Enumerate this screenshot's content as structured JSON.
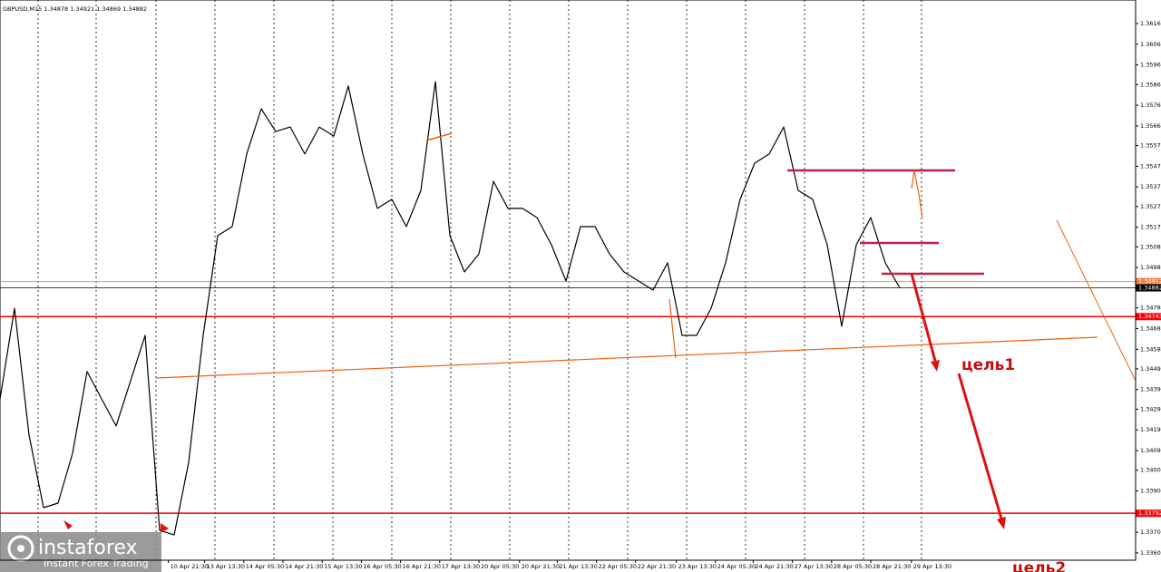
{
  "chart_data": {
    "type": "line",
    "title": "GBPUSD,M15 1.34878 1.34921 1.34869 1.34882",
    "color": "#000000",
    "values": [
      1.34345,
      1.34783,
      1.3417,
      1.33819,
      1.33841,
      1.34082,
      1.34477,
      1.34345,
      1.34214,
      1.34433,
      1.34652,
      1.33709,
      1.33687,
      1.34038,
      1.34652,
      1.35134,
      1.35178,
      1.35529,
      1.35748,
      1.35638,
      1.3566,
      1.35529,
      1.3566,
      1.35616,
      1.35858,
      1.35529,
      1.35266,
      1.3531,
      1.35178,
      1.35353,
      1.35879,
      1.35134,
      1.34959,
      1.35046,
      1.35397,
      1.35266,
      1.35266,
      1.35222,
      1.3509,
      1.34915,
      1.35178,
      1.35178,
      1.35046,
      1.34959,
      1.34915,
      1.34871,
      1.35003,
      1.34652,
      1.34652,
      1.34783,
      1.35003,
      1.3531,
      1.35485,
      1.35529,
      1.3566,
      1.35353,
      1.3531,
      1.3509,
      1.34696,
      1.3509,
      1.35222,
      1.35003,
      1.34882
    ],
    "xlim": [
      0,
      78.25
    ],
    "ylim": [
      1.33591,
      1.36274
    ],
    "xticks": [
      {
        "value": 11.6,
        "label": "10 Apr 21:30"
      },
      {
        "value": 14.1,
        "label": "13 Apr 13:30"
      },
      {
        "value": 16.8,
        "label": "14 Apr 05:30"
      },
      {
        "value": 19.5,
        "label": "14 Apr 21:30"
      },
      {
        "value": 22.2,
        "label": "15 Apr 13:30"
      },
      {
        "value": 24.9,
        "label": "16 Apr 05:30"
      },
      {
        "value": 27.6,
        "label": "16 Apr 21:30"
      },
      {
        "value": 30.3,
        "label": "17 Apr 13:30"
      },
      {
        "value": 33,
        "label": "20 Apr 05:30"
      },
      {
        "value": 35.8,
        "label": "20 Apr 21:30"
      },
      {
        "value": 38.4,
        "label": "21 Apr 13:30"
      },
      {
        "value": 41.1,
        "label": "22 Apr 05:30"
      },
      {
        "value": 43.8,
        "label": "22 Apr 21:30"
      },
      {
        "value": 46.6,
        "label": "23 Apr 13:30"
      },
      {
        "value": 49.3,
        "label": "24 Apr 05:30"
      },
      {
        "value": 51.9,
        "label": "24 Apr 21:30"
      },
      {
        "value": 54.6,
        "label": "27 Apr 13:30"
      },
      {
        "value": 57.3,
        "label": "28 Apr 05:30"
      },
      {
        "value": 60,
        "label": "28 Apr 21:30"
      },
      {
        "value": 62.8,
        "label": "29 Apr 13:30"
      }
    ],
    "yticks": [
      {
        "value": 1.3616,
        "label": "1.36160"
      },
      {
        "value": 1.3606,
        "label": "1.36060"
      },
      {
        "value": 1.3596,
        "label": "1.35960"
      },
      1.35865,
      1.35765,
      1.35665,
      {
        "value": 1.3557,
        "label": "1.35570"
      },
      {
        "value": 1.3547,
        "label": "1.35470"
      },
      {
        "value": 1.3537,
        "label": "1.35370"
      },
      1.35275,
      1.35175,
      {
        "value": 1.3508,
        "label": "1.35080"
      },
      {
        "value": 1.3498,
        "label": "1.34980"
      },
      1.34785,
      1.34685,
      1.34585,
      {
        "value": 1.3449,
        "label": "1.34490"
      },
      {
        "value": 1.3439,
        "label": "1.34390"
      },
      1.34295,
      1.34195,
      1.34095,
      {
        "value": 1.34,
        "label": "1.34000"
      },
      {
        "value": 1.339,
        "label": "1.33900"
      },
      {
        "value": 1.337,
        "label": "1.33700"
      },
      {
        "value": 1.336,
        "label": "1.33600"
      }
    ],
    "levels": [
      {
        "value": 1.34912,
        "color": "#f08040"
      },
      {
        "value": 1.34882,
        "color": "#000000"
      },
      {
        "value": 1.34743,
        "color": "#ff0000"
      },
      {
        "value": 1.33792,
        "color": "#ff0000"
      }
    ],
    "annotations": [
      "цель1",
      "цель2"
    ],
    "logo": {
      "name": "instaforex",
      "tagline": "Instant Forex Trading"
    }
  }
}
